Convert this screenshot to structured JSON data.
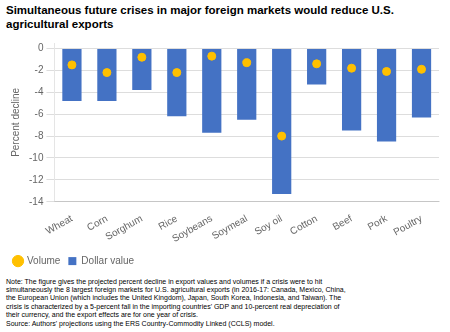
{
  "chart_data": {
    "type": "bar",
    "title": "Simultaneous future crises in major foreign markets would reduce U.S. agricultural exports",
    "ylabel": "Percent decline",
    "categories": [
      "Wheat",
      "Corn",
      "Sorghum",
      "Rice",
      "Soybeans",
      "Soymeal",
      "Soy oil",
      "Cotton",
      "Beef",
      "Pork",
      "Poultry"
    ],
    "series": [
      {
        "name": "Dollar value",
        "type": "bar",
        "color": "#4472C4",
        "values": [
          -4.8,
          -4.8,
          -3.8,
          -6.2,
          -7.7,
          -6.5,
          -13.3,
          -3.3,
          -7.5,
          -8.5,
          -6.3
        ]
      },
      {
        "name": "Volume",
        "type": "scatter",
        "marker": "circle",
        "color": "#FFC000",
        "values": [
          -1.5,
          -2.2,
          -0.8,
          -2.2,
          -0.7,
          -1.3,
          -8.0,
          -1.4,
          -1.8,
          -2.1,
          -1.9
        ]
      }
    ],
    "ylim": [
      -14,
      0.5
    ],
    "yticks": [
      0,
      -2,
      -4,
      -6,
      -8,
      -10,
      -12,
      -14
    ],
    "grid": true,
    "legend": "lower left",
    "annotations": [
      "Note: The figure gives the projected percent decline in export values and volumes if a crisis were to hit",
      "simultaneously the 8 largest foreign markets for U.S. agricultural exports (in 2016-17: Canada, Mexico, China,",
      "the European Union (which includes the United Kingdom), Japan, South Korea, Indonesia, and Taiwan). The",
      "crisis is characterized by a 5-percent fall in the importing countries' GDP and 10-percent real depreciation of",
      "their currency, and the export effects are for one year of crisis.",
      "Source: Authors' projections using the ERS Country-Commodity Linked (CCLS) model."
    ]
  }
}
